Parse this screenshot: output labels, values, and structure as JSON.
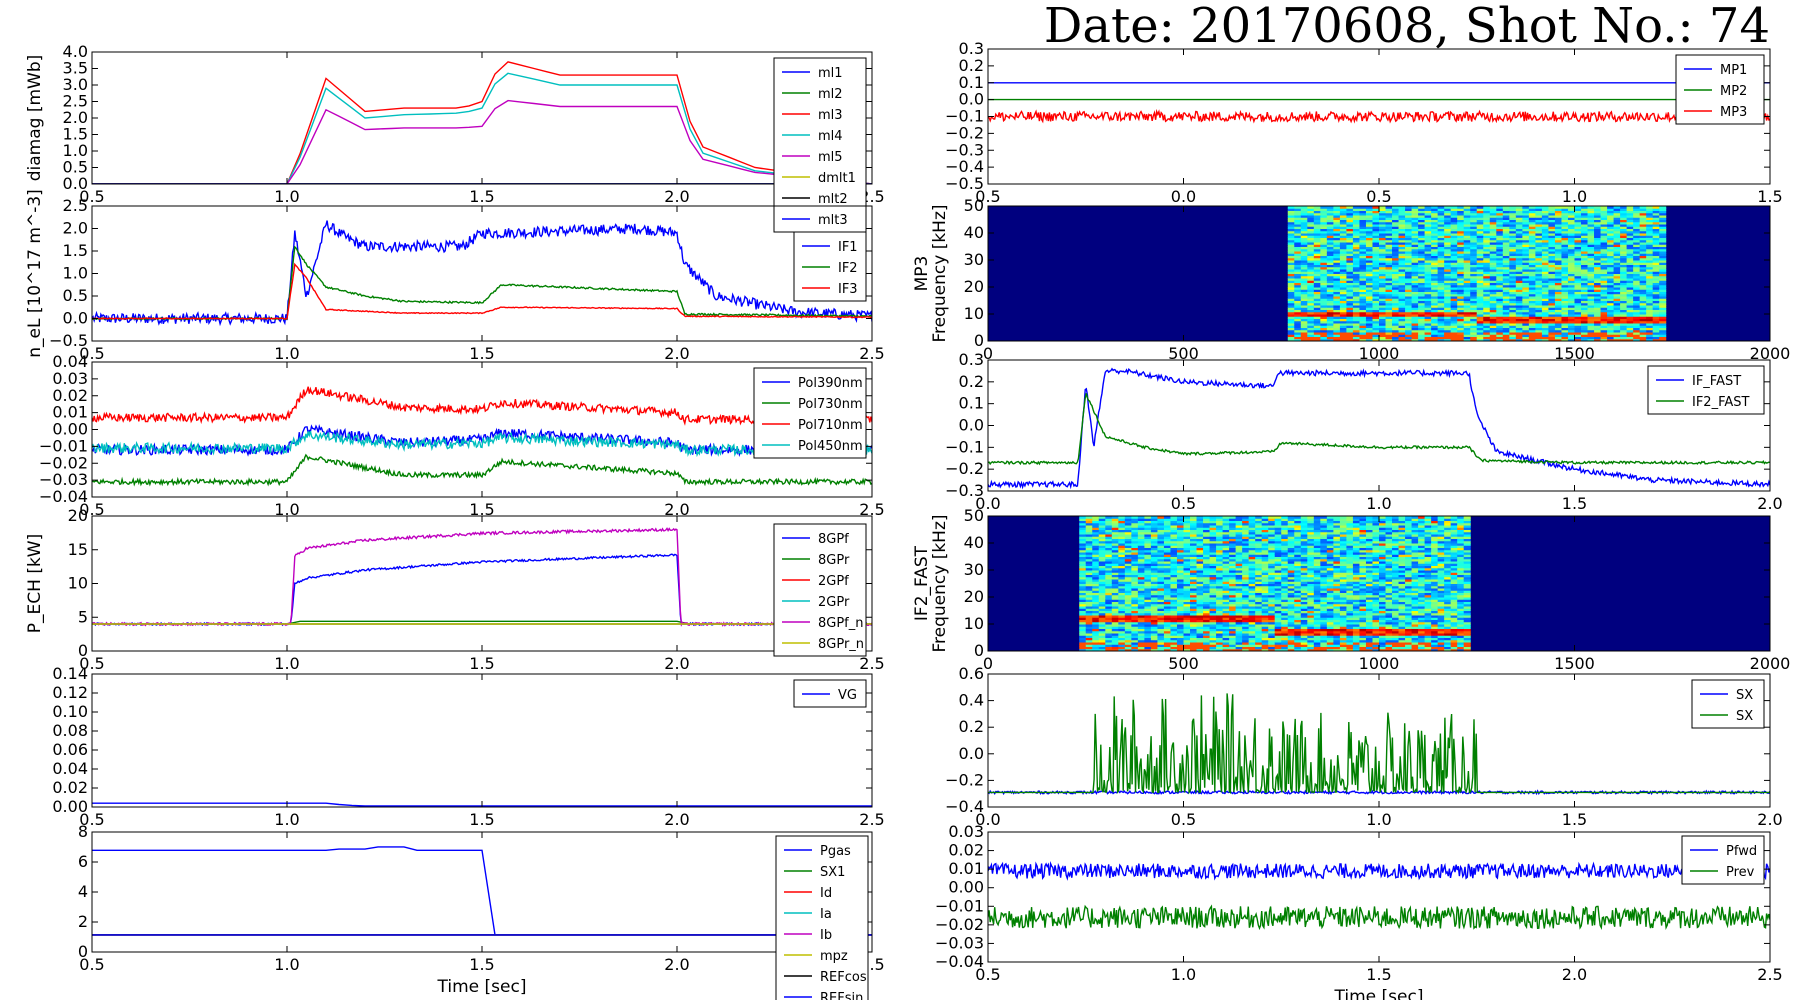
{
  "title": "Date: 20170608, Shot No.: 74",
  "colors": {
    "blue": "#0000ff",
    "green": "#008000",
    "red": "#ff0000",
    "cyan": "#00bfbf",
    "magenta": "#bf00bf",
    "olive": "#bfbf00",
    "black": "#000000"
  },
  "chart_data": [
    {
      "id": "diamag",
      "type": "line",
      "xlim": [
        0.5,
        2.5
      ],
      "ylim": [
        0,
        4.0
      ],
      "xticks": [
        "0.5",
        "1.0",
        "1.5",
        "2.0",
        "2.5"
      ],
      "yticks": [
        "0.0",
        "0.5",
        "1.0",
        "1.5",
        "2.0",
        "2.5",
        "3.0",
        "3.5",
        "4.0"
      ],
      "ylabel": "diamag [mWb]",
      "xlabel": "",
      "series": [
        {
          "name": "ml1",
          "color": "#0000ff",
          "x": [
            0.5,
            2.5
          ],
          "y": [
            0,
            0
          ]
        },
        {
          "name": "ml2",
          "color": "#008000",
          "x": [
            0.5,
            2.5
          ],
          "y": [
            0,
            0
          ]
        },
        {
          "name": "ml3",
          "color": "#ff0000",
          "x": [
            0.5,
            1.0,
            1.03,
            1.1,
            1.2,
            1.3,
            1.45,
            1.5,
            1.55,
            1.7,
            2.0,
            2.05,
            2.2,
            2.5
          ],
          "y": [
            0,
            0,
            0.8,
            3.2,
            2.2,
            2.3,
            2.3,
            2.5,
            3.75,
            3.3,
            3.3,
            1.2,
            0.5,
            0
          ]
        },
        {
          "name": "ml4",
          "color": "#00bfbf",
          "x": [
            0.5,
            1.0,
            1.03,
            1.1,
            1.2,
            1.3,
            1.45,
            1.5,
            1.55,
            1.7,
            2.0,
            2.05,
            2.2,
            2.5
          ],
          "y": [
            0,
            0,
            0.7,
            2.9,
            2.0,
            2.1,
            2.15,
            2.3,
            3.4,
            3.0,
            3.0,
            1.0,
            0.4,
            0
          ]
        },
        {
          "name": "ml5",
          "color": "#bf00bf",
          "x": [
            0.5,
            1.0,
            1.03,
            1.1,
            1.2,
            1.3,
            1.45,
            1.5,
            1.55,
            1.7,
            2.0,
            2.05,
            2.2,
            2.5
          ],
          "y": [
            0,
            0,
            0.5,
            2.25,
            1.65,
            1.7,
            1.7,
            1.75,
            2.55,
            2.35,
            2.35,
            0.8,
            0.35,
            0
          ]
        },
        {
          "name": "dmlt1",
          "color": "#bfbf00",
          "x": [
            0.5,
            2.5
          ],
          "y": [
            0,
            0
          ]
        },
        {
          "name": "mlt2",
          "color": "#000000",
          "x": [
            0.5,
            2.5
          ],
          "y": [
            0,
            0
          ]
        },
        {
          "name": "mlt3",
          "color": "#0000ff",
          "x": [
            0.5,
            2.5
          ],
          "y": [
            0,
            0
          ]
        }
      ]
    },
    {
      "id": "density",
      "type": "line",
      "xlim": [
        0.5,
        2.5
      ],
      "ylim": [
        -0.5,
        2.5
      ],
      "xticks": [
        "0.5",
        "1.0",
        "1.5",
        "2.0",
        "2.5"
      ],
      "yticks": [
        "−0.5",
        "0.0",
        "0.5",
        "1.0",
        "1.5",
        "2.0",
        "2.5"
      ],
      "ylabel": "n_eL [10^17 m^-3]",
      "xlabel": "",
      "series": [
        {
          "name": "IF1",
          "color": "#0000ff",
          "noise": 0.12,
          "x": [
            0.5,
            1.0,
            1.02,
            1.05,
            1.1,
            1.15,
            1.2,
            1.45,
            1.5,
            1.55,
            1.9,
            2.0,
            2.02,
            2.1,
            2.3,
            2.5
          ],
          "y": [
            0,
            0,
            1.9,
            0.5,
            2.1,
            1.8,
            1.6,
            1.6,
            1.9,
            1.9,
            2.0,
            1.9,
            1.2,
            0.5,
            0.15,
            0.05
          ]
        },
        {
          "name": "IF2",
          "color": "#008000",
          "noise": 0.02,
          "x": [
            0.5,
            1.0,
            1.02,
            1.05,
            1.1,
            1.2,
            1.3,
            1.5,
            1.55,
            2.0,
            2.02,
            2.5
          ],
          "y": [
            0,
            0,
            1.6,
            1.2,
            0.7,
            0.5,
            0.38,
            0.35,
            0.75,
            0.6,
            0.1,
            0.05
          ]
        },
        {
          "name": "IF3",
          "color": "#ff0000",
          "noise": 0.01,
          "x": [
            0.5,
            1.0,
            1.02,
            1.05,
            1.1,
            1.3,
            1.5,
            1.55,
            2.0,
            2.02,
            2.5
          ],
          "y": [
            0,
            0,
            1.2,
            0.9,
            0.2,
            0.12,
            0.12,
            0.25,
            0.22,
            0.05,
            0.03
          ]
        }
      ]
    },
    {
      "id": "pol",
      "type": "line",
      "xlim": [
        0.5,
        2.5
      ],
      "ylim": [
        -0.04,
        0.04
      ],
      "xticks": [
        "0.5",
        "1.0",
        "1.5",
        "2.0",
        "2.5"
      ],
      "yticks": [
        "−0.04",
        "−0.03",
        "−0.02",
        "−0.01",
        "0.00",
        "0.01",
        "0.02",
        "0.03",
        "0.04"
      ],
      "ylabel": "",
      "xlabel": "",
      "series": [
        {
          "name": "Pol390nm",
          "color": "#0000ff",
          "noise": 0.003,
          "x": [
            0.5,
            1.0,
            1.05,
            1.3,
            1.5,
            1.55,
            2.0,
            2.02,
            2.5
          ],
          "y": [
            -0.012,
            -0.012,
            0.0,
            -0.008,
            -0.006,
            -0.002,
            -0.008,
            -0.012,
            -0.012
          ]
        },
        {
          "name": "Pol730nm",
          "color": "#008000",
          "noise": 0.0015,
          "x": [
            0.5,
            1.0,
            1.05,
            1.3,
            1.5,
            1.55,
            2.0,
            2.02,
            2.5
          ],
          "y": [
            -0.031,
            -0.031,
            -0.016,
            -0.027,
            -0.027,
            -0.019,
            -0.026,
            -0.031,
            -0.031
          ]
        },
        {
          "name": "Pol710nm",
          "color": "#ff0000",
          "noise": 0.0025,
          "x": [
            0.5,
            1.0,
            1.05,
            1.3,
            1.5,
            1.55,
            2.0,
            2.02,
            2.5
          ],
          "y": [
            0.007,
            0.007,
            0.024,
            0.013,
            0.012,
            0.016,
            0.01,
            0.006,
            0.006
          ]
        },
        {
          "name": "Pol450nm",
          "color": "#00bfbf",
          "noise": 0.003,
          "x": [
            0.5,
            1.0,
            1.05,
            1.3,
            1.5,
            1.55,
            2.0,
            2.02,
            2.5
          ],
          "y": [
            -0.011,
            -0.011,
            -0.003,
            -0.009,
            -0.008,
            -0.005,
            -0.009,
            -0.012,
            -0.012
          ]
        }
      ]
    },
    {
      "id": "pech",
      "type": "line",
      "xlim": [
        0.5,
        2.5
      ],
      "ylim": [
        -5,
        20
      ],
      "xticks": [
        "0.5",
        "1.0",
        "1.5",
        "2.0",
        "2.5"
      ],
      "yticks": [
        "0",
        "5",
        "10",
        "15",
        "20"
      ],
      "ylabel": "P_ECH [kW]",
      "xlabel": "",
      "series": [
        {
          "name": "8GPf",
          "color": "#0000ff",
          "noise": 0.2,
          "x": [
            0.5,
            1.0,
            1.01,
            1.02,
            1.05,
            1.2,
            1.5,
            2.0,
            2.01,
            2.5
          ],
          "y": [
            0,
            0,
            0,
            7.5,
            8.5,
            10,
            11.5,
            12.8,
            0,
            0
          ]
        },
        {
          "name": "8GPr",
          "color": "#008000",
          "x": [
            0.5,
            1.0,
            1.02,
            2.0,
            2.01,
            2.5
          ],
          "y": [
            0,
            0,
            0.5,
            0.5,
            0,
            0
          ]
        },
        {
          "name": "2GPf",
          "color": "#ff0000",
          "x": [
            0.5,
            2.5
          ],
          "y": [
            0,
            0
          ]
        },
        {
          "name": "2GPr",
          "color": "#00bfbf",
          "x": [
            0.5,
            2.5
          ],
          "y": [
            0,
            0
          ]
        },
        {
          "name": "8GPf_n",
          "color": "#bf00bf",
          "noise": 0.25,
          "x": [
            0.5,
            1.0,
            1.01,
            1.02,
            1.05,
            1.2,
            1.5,
            2.0,
            2.01,
            2.5
          ],
          "y": [
            0,
            0,
            0,
            12.5,
            14,
            15.5,
            16.8,
            17.5,
            0,
            0
          ]
        },
        {
          "name": "8GPr_n",
          "color": "#bfbf00",
          "x": [
            0.5,
            2.5
          ],
          "y": [
            0,
            0
          ]
        }
      ]
    },
    {
      "id": "vg",
      "type": "line",
      "xlim": [
        0.5,
        2.5
      ],
      "ylim": [
        0,
        0.14
      ],
      "xticks": [
        "0.5",
        "1.0",
        "1.5",
        "2.0",
        "2.5"
      ],
      "yticks": [
        "0.00",
        "0.02",
        "0.04",
        "0.06",
        "0.08",
        "0.10",
        "0.12",
        "0.14"
      ],
      "ylabel": "",
      "xlabel": "",
      "series": [
        {
          "name": "VG",
          "color": "#0000ff",
          "x": [
            0.5,
            1.1,
            1.15,
            1.2,
            2.5
          ],
          "y": [
            0.004,
            0.004,
            0.002,
            0.001,
            0.001
          ]
        }
      ]
    },
    {
      "id": "pgas",
      "type": "line",
      "xlim": [
        0.5,
        2.5
      ],
      "ylim": [
        -1.5,
        9
      ],
      "xticks": [
        "0.5",
        "1.0",
        "1.5",
        "2.0",
        "2.5"
      ],
      "yticks": [
        "0",
        "2",
        "4",
        "6",
        "8"
      ],
      "ylabel": "",
      "xlabel": "Time [sec]",
      "series": [
        {
          "name": "Pgas",
          "color": "#0000ff",
          "x": [
            0.5,
            1.1,
            1.1,
            1.2,
            1.2,
            1.3,
            1.3,
            1.52,
            1.52,
            2.5
          ],
          "y": [
            7.4,
            7.4,
            7.5,
            7.5,
            7.7,
            7.7,
            7.4,
            7.4,
            0,
            0
          ]
        },
        {
          "name": "SX1",
          "color": "#008000",
          "x": [
            0.5,
            2.5
          ],
          "y": [
            0,
            0
          ]
        },
        {
          "name": "Id",
          "color": "#ff0000",
          "x": [
            0.5,
            2.5
          ],
          "y": [
            0,
            0
          ]
        },
        {
          "name": "Ia",
          "color": "#00bfbf",
          "x": [
            0.5,
            2.5
          ],
          "y": [
            0,
            0
          ]
        },
        {
          "name": "Ib",
          "color": "#bf00bf",
          "x": [
            0.5,
            2.5
          ],
          "y": [
            0,
            0
          ]
        },
        {
          "name": "mpz",
          "color": "#bfbf00",
          "x": [
            0.5,
            2.5
          ],
          "y": [
            0,
            0
          ]
        },
        {
          "name": "REFcos",
          "color": "#000000",
          "x": [
            0.5,
            2.5
          ],
          "y": [
            0,
            0
          ]
        },
        {
          "name": "REFsin",
          "color": "#0000ff",
          "x": [
            0.5,
            2.5
          ],
          "y": [
            0,
            0
          ]
        }
      ]
    },
    {
      "id": "mp",
      "type": "line",
      "xlim": [
        0.5,
        1.5
      ],
      "ylim": [
        -0.5,
        0.3
      ],
      "xticks": [
        "0.5",
        "0.0",
        "0.5",
        "1.0",
        "1.5"
      ],
      "yticks": [
        "−0.5",
        "−0.4",
        "−0.3",
        "−0.2",
        "−0.1",
        "0.0",
        "0.1",
        "0.2",
        "0.3"
      ],
      "ylabel": "",
      "xlabel": "",
      "series": [
        {
          "name": "MP1",
          "color": "#0000ff",
          "x": [
            0.5,
            1.5
          ],
          "y": [
            0.1,
            0.1
          ]
        },
        {
          "name": "MP2",
          "color": "#008000",
          "x": [
            0.5,
            1.5
          ],
          "y": [
            0.0,
            0.0
          ]
        },
        {
          "name": "MP3",
          "color": "#ff0000",
          "noise": 0.03,
          "x": [
            0.5,
            0.77,
            0.78,
            1.25,
            1.5
          ],
          "y": [
            -0.1,
            -0.1,
            -0.1,
            -0.1,
            -0.1
          ]
        }
      ]
    },
    {
      "id": "mp3-spectrogram",
      "type": "heatmap",
      "xlim": [
        0,
        2000
      ],
      "ylim": [
        0,
        50
      ],
      "xticks": [
        "0",
        "500",
        "1000",
        "1500",
        "2000"
      ],
      "yticks": [
        "0",
        "10",
        "20",
        "30",
        "40",
        "50"
      ],
      "ylabel": "MP3\nFrequency [kHz]",
      "xlabel": "",
      "active_x": [
        760,
        1730
      ],
      "line_freq": [
        10,
        8
      ]
    },
    {
      "id": "if-fast",
      "type": "line",
      "xlim": [
        0.0,
        2.0
      ],
      "ylim": [
        -0.3,
        0.3
      ],
      "xticks": [
        "0.0",
        "0.5",
        "1.0",
        "1.5",
        "2.0"
      ],
      "yticks": [
        "−0.3",
        "−0.2",
        "−0.1",
        "0.0",
        "0.1",
        "0.2",
        "0.3"
      ],
      "ylabel": "",
      "xlabel": "",
      "series": [
        {
          "name": "IF_FAST",
          "color": "#0000ff",
          "noise": 0.012,
          "x": [
            0.0,
            0.23,
            0.25,
            0.27,
            0.3,
            0.35,
            0.5,
            0.73,
            0.74,
            1.23,
            1.25,
            1.3,
            1.5,
            1.7,
            2.0
          ],
          "y": [
            -0.27,
            -0.27,
            0.2,
            -0.1,
            0.25,
            0.25,
            0.2,
            0.18,
            0.24,
            0.24,
            0.05,
            -0.12,
            -0.2,
            -0.25,
            -0.27
          ]
        },
        {
          "name": "IF2_FAST",
          "color": "#008000",
          "noise": 0.006,
          "x": [
            0.0,
            0.23,
            0.25,
            0.3,
            0.4,
            0.5,
            0.73,
            0.75,
            1.0,
            1.23,
            1.26,
            1.5,
            2.0
          ],
          "y": [
            -0.17,
            -0.17,
            0.15,
            -0.05,
            -0.1,
            -0.13,
            -0.12,
            -0.08,
            -0.1,
            -0.1,
            -0.16,
            -0.17,
            -0.17
          ]
        }
      ]
    },
    {
      "id": "if2-spectrogram",
      "type": "heatmap",
      "xlim": [
        0,
        2000
      ],
      "ylim": [
        0,
        50
      ],
      "xticks": [
        "0",
        "500",
        "1000",
        "1500",
        "2000"
      ],
      "yticks": [
        "0",
        "10",
        "20",
        "30",
        "40",
        "50"
      ],
      "ylabel": "IF2_FAST\nFrequency [kHz]",
      "xlabel": "",
      "active_x": [
        240,
        1230
      ],
      "line_freq": [
        12,
        7
      ]
    },
    {
      "id": "sx",
      "type": "line",
      "xlim": [
        0.0,
        2.0
      ],
      "ylim": [
        -0.4,
        0.6
      ],
      "xticks": [
        "0.0",
        "0.5",
        "1.0",
        "1.5",
        "2.0"
      ],
      "yticks": [
        "−0.4",
        "−0.2",
        "0.0",
        "0.2",
        "0.4",
        "0.6"
      ],
      "ylabel": "",
      "xlabel": "",
      "series": [
        {
          "name": "SX",
          "color": "#0000ff",
          "noise": 0.01,
          "x": [
            0.0,
            2.0
          ],
          "y": [
            -0.29,
            -0.29
          ]
        },
        {
          "name": "SX",
          "color": "#008000",
          "spiky": true,
          "x": [
            0.0,
            0.27,
            1.25,
            2.0
          ],
          "y": [
            -0.29,
            -0.29,
            -0.29,
            -0.29
          ]
        }
      ]
    },
    {
      "id": "pfwd",
      "type": "line",
      "xlim": [
        0.5,
        2.5
      ],
      "ylim": [
        -0.04,
        0.03
      ],
      "xticks": [
        "0.5",
        "1.0",
        "1.5",
        "2.0",
        "2.5"
      ],
      "yticks": [
        "−0.04",
        "−0.03",
        "−0.02",
        "−0.01",
        "0.00",
        "0.01",
        "0.02",
        "0.03"
      ],
      "ylabel": "",
      "xlabel": "Time [sec]",
      "series": [
        {
          "name": "Pfwd",
          "color": "#0000ff",
          "noise": 0.004,
          "x": [
            0.5,
            2.5
          ],
          "y": [
            0.009,
            0.009
          ]
        },
        {
          "name": "Prev",
          "color": "#008000",
          "noise": 0.006,
          "x": [
            0.5,
            2.5
          ],
          "y": [
            -0.016,
            -0.016
          ]
        }
      ]
    }
  ]
}
